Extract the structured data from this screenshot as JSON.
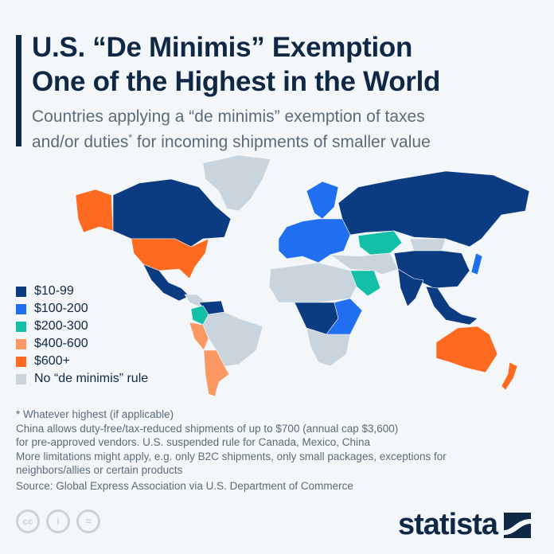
{
  "title_line1": "U.S. “De Minimis” Exemption",
  "title_line2": "One of the Highest in the World",
  "subtitle_line1": "Countries applying a “de minimis” exemption of taxes",
  "subtitle_line2": "and/or duties",
  "subtitle_sup": "*",
  "subtitle_line2_end": " for incoming shipments of smaller value",
  "chart_data": {
    "type": "choropleth",
    "legend": [
      {
        "label": "$10-99",
        "color": "#0b3c82"
      },
      {
        "label": "$100-200",
        "color": "#1f6ff0"
      },
      {
        "label": "$200-300",
        "color": "#13bfa6"
      },
      {
        "label": "$400-600",
        "color": "#fb9864"
      },
      {
        "label": "$600+",
        "color": "#fd6a20"
      },
      {
        "label": "No “de minimis” rule",
        "color": "#c9d4dd"
      }
    ],
    "regions": {
      "Greenland": 5,
      "Alaska (U.S.)": 4,
      "Canada": 0,
      "United States": 4,
      "Mexico": 0,
      "Central America": 5,
      "Colombia": 2,
      "Venezuela": 0,
      "Peru": 3,
      "Brazil": 5,
      "Argentina/Chile": 3,
      "Europe": 1,
      "Scandinavia": 1,
      "Russia": 0,
      "Kazakhstan": 2,
      "Mongolia": 5,
      "China": 0,
      "India": 0,
      "Saudi Arabia": 2,
      "Middle East": 5,
      "North Africa": 5,
      "Central Africa": 0,
      "East Africa": 1,
      "Southern Africa": 5,
      "Southeast Asia": 0,
      "Japan": 1,
      "Australia": 4,
      "New Zealand": 4
    }
  },
  "notes": [
    "* Whatever highest (if applicable)",
    "China allows duty-free/tax-reduced shipments of up to $700 (annual cap $3,600)",
    "for pre-approved vendors. U.S. suspended rule for Canada, Mexico, China",
    "More limitations might apply, e.g. only B2C shipments, only small packages, exceptions for",
    "neighbors/allies or certain products"
  ],
  "source": "Source: Global Express Association via U.S. Department of Commerce",
  "license_icons": [
    "cc-icon",
    "attribution-icon",
    "no-derivatives-icon"
  ],
  "license_labels": [
    "cc",
    "i",
    "="
  ],
  "logo": "statista"
}
